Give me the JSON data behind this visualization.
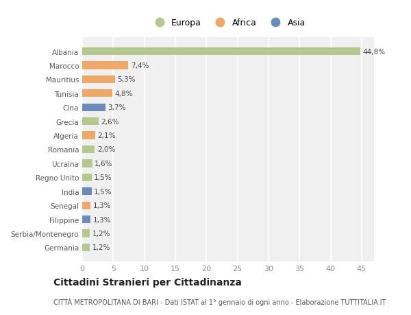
{
  "countries": [
    "Albania",
    "Marocco",
    "Mauritius",
    "Tunisia",
    "Cina",
    "Grecia",
    "Algeria",
    "Romania",
    "Ucraina",
    "Regno Unito",
    "India",
    "Senegal",
    "Filippine",
    "Serbia/Montenegro",
    "Germania"
  ],
  "values": [
    44.8,
    7.4,
    5.3,
    4.8,
    3.7,
    2.6,
    2.1,
    2.0,
    1.6,
    1.5,
    1.5,
    1.3,
    1.3,
    1.2,
    1.2
  ],
  "labels": [
    "44,8%",
    "7,4%",
    "5,3%",
    "4,8%",
    "3,7%",
    "2,6%",
    "2,1%",
    "2,0%",
    "1,6%",
    "1,5%",
    "1,5%",
    "1,3%",
    "1,3%",
    "1,2%",
    "1,2%"
  ],
  "colors": [
    "#b5c98e",
    "#f0a868",
    "#f0a868",
    "#f0a868",
    "#6b8cba",
    "#b5c98e",
    "#f0a868",
    "#b5c98e",
    "#b5c98e",
    "#b5c98e",
    "#6b8cba",
    "#f0a868",
    "#6b8cba",
    "#b5c98e",
    "#b5c98e"
  ],
  "legend_labels": [
    "Europa",
    "Africa",
    "Asia"
  ],
  "legend_colors": [
    "#b5c98e",
    "#f0a868",
    "#6b8cba"
  ],
  "title": "Cittadini Stranieri per Cittadinanza",
  "subtitle": "CITTÀ METROPOLITANA DI BARI - Dati ISTAT al 1° gennaio di ogni anno - Elaborazione TUTTITALIA.IT",
  "xlim": [
    0,
    47
  ],
  "xticks": [
    0,
    5,
    10,
    15,
    20,
    25,
    30,
    35,
    40,
    45
  ],
  "bg_color": "#ffffff",
  "plot_bg_color": "#f0f0f0",
  "grid_color": "#ffffff",
  "bar_height": 0.55,
  "label_fontsize": 7.5,
  "ytick_fontsize": 7.5,
  "xtick_fontsize": 8,
  "title_fontsize": 10,
  "subtitle_fontsize": 7,
  "legend_fontsize": 9
}
